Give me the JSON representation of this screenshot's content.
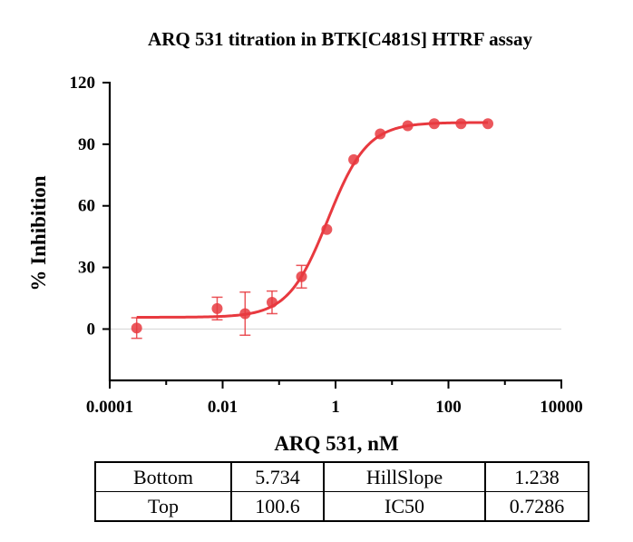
{
  "chart_data": {
    "type": "scatter",
    "title": "ARQ 531 titration in  BTK[C481S] HTRF assay",
    "xlabel": "ARQ 531, nM",
    "ylabel": "% Inhibition",
    "xscale": "log",
    "xlim": [
      0.0001,
      10000
    ],
    "ylim": [
      -25,
      120
    ],
    "x_ticks": [
      0.0001,
      0.01,
      1,
      100,
      10000
    ],
    "x_tick_labels": [
      "0.0001",
      "0.01",
      "1",
      "100",
      "10000"
    ],
    "y_ticks": [
      0,
      30,
      60,
      90,
      120
    ],
    "y_tick_labels": [
      "0",
      "30",
      "60",
      "90",
      "120"
    ],
    "grid": false,
    "reference_line_y": 0,
    "color": "#e8393f",
    "series": [
      {
        "x": [
          0.0003,
          0.008,
          0.025,
          0.075,
          0.25,
          0.7,
          2.1,
          6.2,
          19,
          56,
          167,
          500
        ],
        "y": [
          0.5,
          10,
          7.5,
          13,
          25.5,
          48.5,
          82.5,
          95,
          99,
          100,
          100,
          100
        ],
        "error": [
          5,
          5.5,
          10.5,
          5.5,
          5.5,
          0,
          0,
          0,
          0,
          0,
          0,
          0
        ]
      }
    ],
    "fit": {
      "model": "four-parameter logistic",
      "bottom": 5.734,
      "top": 100.6,
      "hill_slope": 1.238,
      "ic50": 0.7286
    },
    "parameter_table": [
      [
        "Bottom",
        "5.734",
        "HillSlope",
        "1.238"
      ],
      [
        "Top",
        "100.6",
        "IC50",
        "0.7286"
      ]
    ]
  }
}
